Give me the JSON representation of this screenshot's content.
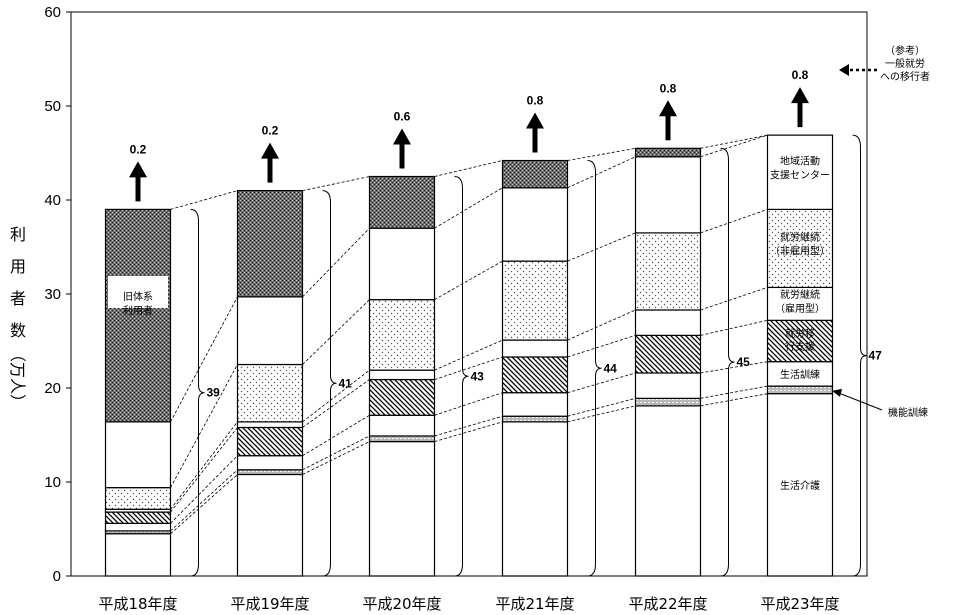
{
  "chart_data": {
    "type": "bar",
    "stacked": true,
    "categories": [
      "平成18年度",
      "平成19年度",
      "平成20年度",
      "平成21年度",
      "平成22年度",
      "平成23年度"
    ],
    "ylabel": [
      "利",
      "用",
      "者",
      "数",
      "（万人）"
    ],
    "ylim": [
      0,
      60
    ],
    "yticks": [
      0,
      10,
      20,
      30,
      40,
      50,
      60
    ],
    "series": [
      {
        "name": "生活介護",
        "pattern": "white",
        "values": [
          4.5,
          10.8,
          14.3,
          16.4,
          18.1,
          19.4
        ]
      },
      {
        "name": "機能訓練",
        "pattern": "bricks",
        "values": [
          0.3,
          0.5,
          0.6,
          0.6,
          0.8,
          0.8
        ]
      },
      {
        "name": "生活訓練",
        "pattern": "white",
        "values": [
          0.8,
          1.5,
          2.2,
          2.5,
          2.7,
          2.6
        ]
      },
      {
        "name": "就労移行支援",
        "pattern": "hatch",
        "values": [
          1.2,
          3.0,
          3.8,
          3.8,
          4.0,
          4.4
        ]
      },
      {
        "name": "就労継続（雇用型）",
        "pattern": "white",
        "values": [
          0.3,
          0.6,
          1.0,
          1.8,
          2.7,
          3.5
        ]
      },
      {
        "name": "就労継続（非雇用型）",
        "pattern": "dots",
        "values": [
          2.3,
          6.1,
          7.5,
          8.4,
          8.2,
          8.3
        ]
      },
      {
        "name": "地域活動支援センター",
        "pattern": "white",
        "values": [
          7.0,
          7.2,
          7.6,
          7.8,
          8.1,
          7.9
        ]
      },
      {
        "name": "旧体系利用者",
        "pattern": "dark",
        "values": [
          22.6,
          11.3,
          5.5,
          2.9,
          0.9,
          0
        ]
      }
    ],
    "totals": [
      "39",
      "41",
      "43",
      "44",
      "45",
      "47"
    ],
    "arrow_values": [
      "0.2",
      "0.2",
      "0.6",
      "0.8",
      "0.8",
      "0.8"
    ],
    "labels": {
      "old_system": "旧体系\n利用者",
      "center": "地域活動\n支援センター",
      "nonemploy": "就労継続\n（非雇用型）",
      "employ": "就労継続\n（雇用型）",
      "transition": "就労移\n行支援",
      "life_training": "生活訓練",
      "functional_training": "機能訓練",
      "life_care": "生活介護"
    },
    "legend_note": "（参考）\n一般就労\nへの移行者"
  }
}
